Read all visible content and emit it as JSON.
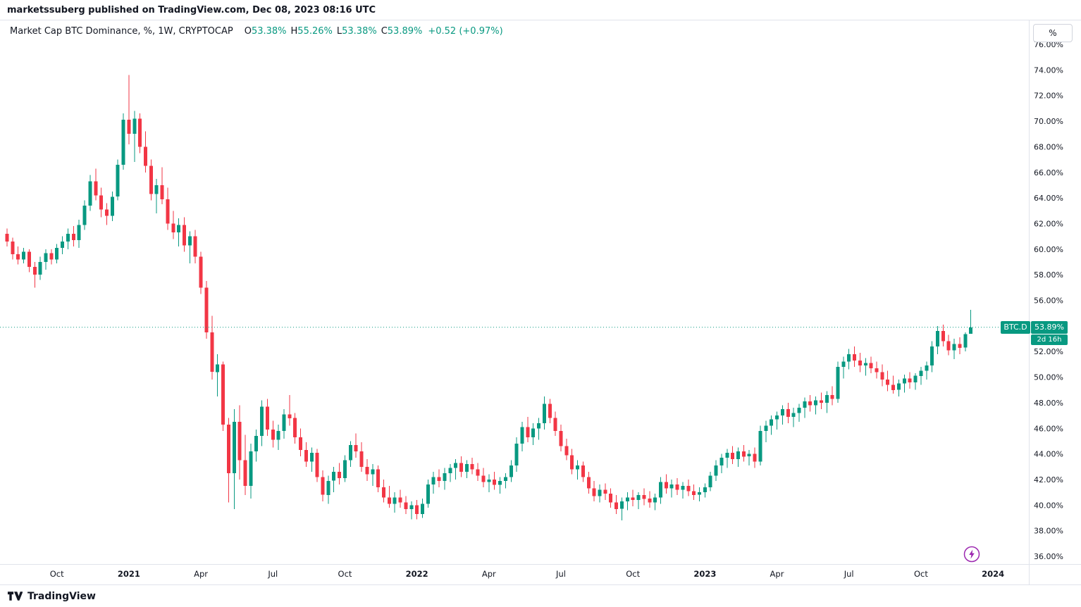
{
  "header": {
    "published_line": "marketssuberg published on TradingView.com, Dec 08, 2023 08:16 UTC"
  },
  "legend": {
    "title": "Market Cap BTC Dominance, %, 1W, CRYPTOCAP",
    "ohlc": [
      {
        "label": "O",
        "value": "53.38%"
      },
      {
        "label": "H",
        "value": "55.26%"
      },
      {
        "label": "L",
        "value": "53.38%"
      },
      {
        "label": "C",
        "value": "53.89%"
      }
    ],
    "change": "+0.52 (+0.97%)"
  },
  "price_scale": {
    "unit_button_label": "%",
    "min": 36,
    "max": 76,
    "step": 2,
    "tick_suffix": "%"
  },
  "price_label": {
    "symbol": "BTC.D",
    "value": "53.89%",
    "countdown": "2d 16h"
  },
  "time_axis": [
    {
      "label": "Oct",
      "index": 9
    },
    {
      "label": "2021",
      "index": 22,
      "bold": true
    },
    {
      "label": "Apr",
      "index": 35
    },
    {
      "label": "Jul",
      "index": 48
    },
    {
      "label": "Oct",
      "index": 61
    },
    {
      "label": "2022",
      "index": 74,
      "bold": true
    },
    {
      "label": "Apr",
      "index": 87
    },
    {
      "label": "Jul",
      "index": 100
    },
    {
      "label": "Oct",
      "index": 113
    },
    {
      "label": "2023",
      "index": 126,
      "bold": true
    },
    {
      "label": "Apr",
      "index": 139
    },
    {
      "label": "Jul",
      "index": 152
    },
    {
      "label": "Oct",
      "index": 165
    },
    {
      "label": "2024",
      "index": 178,
      "bold": true
    }
  ],
  "footer": {
    "brand": "TradingView"
  },
  "colors": {
    "up": "#089981",
    "down": "#f23645",
    "axis_text": "#131722",
    "separator": "#e0e3eb",
    "last_price_line": "#089981",
    "badge_bg": "#089981",
    "bolt": "#9c27b0"
  },
  "chart_data": {
    "type": "candlestick",
    "title": "Market Cap BTC Dominance",
    "symbol": "CRYPTOCAP:BTC.D",
    "interval": "1W",
    "unit": "%",
    "ylim": [
      36,
      76
    ],
    "y_tick_step": 2,
    "x_start_week": "2020-08-03",
    "x_interval": "1 week",
    "last_close": 53.89,
    "last_change": "+0.52 (+0.97%)",
    "ohlc": [
      [
        61.2,
        61.6,
        60.2,
        60.6
      ],
      [
        60.6,
        60.9,
        59.2,
        59.6
      ],
      [
        59.6,
        60.2,
        58.8,
        59.2
      ],
      [
        59.2,
        60.1,
        58.9,
        59.8
      ],
      [
        59.8,
        60.0,
        58.2,
        58.6
      ],
      [
        58.6,
        59.0,
        57.0,
        58.0
      ],
      [
        58.0,
        59.4,
        57.6,
        59.0
      ],
      [
        59.0,
        60.0,
        58.4,
        59.7
      ],
      [
        59.7,
        60.0,
        58.8,
        59.2
      ],
      [
        59.2,
        60.4,
        58.9,
        60.1
      ],
      [
        60.1,
        61.0,
        59.6,
        60.6
      ],
      [
        60.6,
        61.6,
        60.0,
        61.2
      ],
      [
        61.2,
        61.8,
        60.2,
        60.7
      ],
      [
        60.7,
        62.3,
        60.1,
        61.9
      ],
      [
        61.9,
        63.8,
        61.5,
        63.4
      ],
      [
        63.4,
        65.8,
        63.0,
        65.3
      ],
      [
        65.3,
        66.3,
        63.8,
        64.2
      ],
      [
        64.2,
        64.8,
        62.5,
        63.1
      ],
      [
        63.1,
        63.6,
        61.9,
        62.6
      ],
      [
        62.6,
        64.5,
        62.2,
        64.1
      ],
      [
        64.1,
        67.0,
        63.8,
        66.6
      ],
      [
        66.6,
        70.6,
        66.2,
        70.1
      ],
      [
        70.1,
        73.6,
        68.2,
        69.0
      ],
      [
        69.0,
        70.8,
        66.8,
        70.2
      ],
      [
        70.2,
        70.6,
        67.5,
        68.0
      ],
      [
        68.0,
        69.2,
        66.0,
        66.5
      ],
      [
        66.5,
        67.0,
        63.8,
        64.3
      ],
      [
        64.3,
        65.5,
        62.8,
        65.0
      ],
      [
        65.0,
        66.4,
        63.5,
        63.9
      ],
      [
        63.9,
        64.8,
        61.5,
        62.0
      ],
      [
        62.0,
        63.0,
        60.8,
        61.3
      ],
      [
        61.3,
        62.4,
        60.2,
        61.9
      ],
      [
        61.9,
        62.5,
        59.8,
        60.3
      ],
      [
        60.3,
        61.4,
        58.9,
        61.0
      ],
      [
        61.0,
        61.5,
        58.9,
        59.4
      ],
      [
        59.4,
        59.8,
        56.5,
        57.0
      ],
      [
        57.0,
        57.5,
        53.0,
        53.5
      ],
      [
        53.5,
        54.8,
        49.8,
        50.4
      ],
      [
        50.4,
        51.8,
        48.5,
        51.0
      ],
      [
        51.0,
        51.2,
        45.8,
        46.3
      ],
      [
        46.3,
        46.8,
        40.2,
        42.5
      ],
      [
        42.5,
        47.5,
        39.7,
        46.5
      ],
      [
        46.5,
        47.8,
        42.0,
        43.5
      ],
      [
        43.5,
        45.5,
        40.8,
        41.5
      ],
      [
        41.5,
        44.8,
        40.5,
        44.2
      ],
      [
        44.2,
        45.9,
        43.4,
        45.4
      ],
      [
        45.4,
        48.2,
        44.6,
        47.7
      ],
      [
        47.7,
        48.3,
        45.4,
        45.9
      ],
      [
        45.9,
        46.6,
        44.5,
        45.1
      ],
      [
        45.1,
        46.3,
        44.3,
        45.8
      ],
      [
        45.8,
        47.5,
        45.2,
        47.1
      ],
      [
        47.1,
        48.6,
        46.2,
        46.8
      ],
      [
        46.8,
        47.2,
        44.8,
        45.3
      ],
      [
        45.3,
        46.0,
        43.8,
        44.3
      ],
      [
        44.3,
        44.9,
        43.0,
        43.4
      ],
      [
        43.4,
        44.5,
        42.6,
        44.1
      ],
      [
        44.1,
        44.4,
        41.8,
        42.2
      ],
      [
        42.2,
        42.7,
        40.3,
        40.8
      ],
      [
        40.8,
        42.3,
        40.1,
        41.9
      ],
      [
        41.9,
        43.0,
        41.0,
        42.6
      ],
      [
        42.6,
        43.3,
        41.6,
        42.1
      ],
      [
        42.1,
        43.9,
        41.8,
        43.5
      ],
      [
        43.5,
        45.0,
        43.0,
        44.7
      ],
      [
        44.7,
        45.6,
        43.7,
        44.2
      ],
      [
        44.2,
        44.9,
        42.6,
        43.0
      ],
      [
        43.0,
        43.6,
        41.9,
        42.4
      ],
      [
        42.4,
        43.2,
        41.5,
        42.8
      ],
      [
        42.8,
        43.1,
        41.0,
        41.4
      ],
      [
        41.4,
        42.0,
        40.2,
        40.6
      ],
      [
        40.6,
        41.5,
        39.8,
        40.1
      ],
      [
        40.1,
        41.0,
        39.4,
        40.6
      ],
      [
        40.6,
        41.2,
        39.8,
        40.2
      ],
      [
        40.2,
        40.7,
        39.3,
        39.7
      ],
      [
        39.7,
        40.3,
        38.9,
        40.0
      ],
      [
        40.0,
        40.4,
        38.9,
        39.3
      ],
      [
        39.3,
        40.5,
        39.0,
        40.1
      ],
      [
        40.1,
        42.0,
        39.8,
        41.6
      ],
      [
        41.6,
        42.6,
        40.9,
        42.2
      ],
      [
        42.2,
        42.8,
        41.4,
        41.9
      ],
      [
        41.9,
        42.9,
        41.2,
        42.5
      ],
      [
        42.5,
        43.2,
        41.8,
        42.9
      ],
      [
        42.9,
        43.6,
        42.0,
        43.3
      ],
      [
        43.3,
        43.8,
        42.2,
        42.6
      ],
      [
        42.6,
        43.5,
        42.1,
        43.2
      ],
      [
        43.2,
        43.7,
        42.4,
        42.8
      ],
      [
        42.8,
        43.3,
        41.9,
        42.3
      ],
      [
        42.3,
        42.9,
        41.4,
        41.8
      ],
      [
        41.8,
        42.4,
        41.0,
        42.0
      ],
      [
        42.0,
        42.6,
        41.2,
        41.6
      ],
      [
        41.6,
        42.2,
        40.9,
        41.9
      ],
      [
        41.9,
        42.5,
        41.3,
        42.2
      ],
      [
        42.2,
        43.5,
        41.8,
        43.1
      ],
      [
        43.1,
        45.3,
        42.6,
        44.8
      ],
      [
        44.8,
        46.5,
        44.2,
        46.1
      ],
      [
        46.1,
        46.9,
        44.9,
        45.3
      ],
      [
        45.3,
        46.4,
        44.7,
        46.0
      ],
      [
        46.0,
        46.8,
        45.1,
        46.4
      ],
      [
        46.4,
        48.5,
        45.9,
        47.9
      ],
      [
        47.9,
        48.3,
        46.4,
        46.8
      ],
      [
        46.8,
        47.3,
        45.4,
        45.8
      ],
      [
        45.8,
        46.3,
        44.2,
        44.6
      ],
      [
        44.6,
        45.2,
        43.5,
        43.9
      ],
      [
        43.9,
        44.4,
        42.4,
        42.8
      ],
      [
        42.8,
        43.5,
        42.0,
        43.1
      ],
      [
        43.1,
        43.4,
        41.8,
        42.2
      ],
      [
        42.2,
        42.6,
        40.9,
        41.3
      ],
      [
        41.3,
        41.9,
        40.3,
        40.7
      ],
      [
        40.7,
        41.6,
        40.2,
        41.2
      ],
      [
        41.2,
        41.7,
        40.4,
        40.9
      ],
      [
        40.9,
        41.3,
        39.8,
        40.2
      ],
      [
        40.2,
        40.8,
        39.3,
        39.7
      ],
      [
        39.7,
        40.6,
        38.8,
        40.3
      ],
      [
        40.3,
        41.0,
        39.6,
        40.6
      ],
      [
        40.6,
        41.2,
        39.9,
        40.4
      ],
      [
        40.4,
        41.0,
        39.7,
        40.8
      ],
      [
        40.8,
        41.3,
        40.0,
        40.5
      ],
      [
        40.5,
        41.1,
        39.8,
        40.2
      ],
      [
        40.2,
        40.9,
        39.6,
        40.6
      ],
      [
        40.6,
        42.2,
        40.1,
        41.8
      ],
      [
        41.8,
        42.4,
        40.9,
        41.3
      ],
      [
        41.3,
        42.0,
        40.6,
        41.6
      ],
      [
        41.6,
        42.1,
        40.8,
        41.2
      ],
      [
        41.2,
        41.8,
        40.5,
        41.5
      ],
      [
        41.5,
        42.0,
        40.7,
        41.1
      ],
      [
        41.1,
        41.6,
        40.4,
        40.8
      ],
      [
        40.8,
        41.4,
        40.3,
        41.0
      ],
      [
        41.0,
        41.7,
        40.6,
        41.4
      ],
      [
        41.4,
        42.6,
        41.1,
        42.3
      ],
      [
        42.3,
        43.5,
        41.9,
        43.1
      ],
      [
        43.1,
        44.0,
        42.5,
        43.7
      ],
      [
        43.7,
        44.4,
        42.9,
        44.1
      ],
      [
        44.1,
        44.6,
        43.2,
        43.6
      ],
      [
        43.6,
        44.5,
        43.0,
        44.2
      ],
      [
        44.2,
        44.7,
        43.4,
        43.8
      ],
      [
        43.8,
        44.3,
        43.1,
        44.0
      ],
      [
        44.0,
        44.5,
        42.9,
        43.4
      ],
      [
        43.4,
        46.2,
        43.1,
        45.8
      ],
      [
        45.8,
        46.6,
        44.9,
        46.2
      ],
      [
        46.2,
        47.0,
        45.5,
        46.7
      ],
      [
        46.7,
        47.3,
        45.9,
        47.0
      ],
      [
        47.0,
        47.8,
        46.3,
        47.5
      ],
      [
        47.5,
        48.0,
        46.4,
        46.9
      ],
      [
        46.9,
        47.6,
        46.1,
        47.2
      ],
      [
        47.2,
        47.9,
        46.5,
        47.6
      ],
      [
        47.6,
        48.4,
        46.8,
        48.1
      ],
      [
        48.1,
        48.6,
        47.3,
        47.8
      ],
      [
        47.8,
        48.5,
        47.1,
        48.2
      ],
      [
        48.2,
        48.8,
        47.5,
        48.0
      ],
      [
        48.0,
        48.9,
        47.2,
        48.6
      ],
      [
        48.6,
        49.3,
        47.8,
        48.3
      ],
      [
        48.3,
        51.2,
        48.0,
        50.8
      ],
      [
        50.8,
        51.6,
        49.9,
        51.2
      ],
      [
        51.2,
        52.2,
        50.6,
        51.8
      ],
      [
        51.8,
        52.4,
        50.8,
        51.3
      ],
      [
        51.3,
        51.9,
        50.4,
        50.9
      ],
      [
        50.9,
        51.5,
        50.1,
        51.1
      ],
      [
        51.1,
        51.6,
        50.3,
        50.7
      ],
      [
        50.7,
        51.2,
        49.9,
        50.4
      ],
      [
        50.4,
        51.0,
        49.3,
        49.8
      ],
      [
        49.8,
        50.5,
        48.9,
        49.4
      ],
      [
        49.4,
        50.1,
        48.7,
        49.0
      ],
      [
        49.0,
        49.8,
        48.5,
        49.5
      ],
      [
        49.5,
        50.2,
        48.8,
        49.9
      ],
      [
        49.9,
        50.4,
        49.1,
        49.6
      ],
      [
        49.6,
        50.3,
        49.0,
        50.1
      ],
      [
        50.1,
        50.8,
        49.4,
        50.5
      ],
      [
        50.5,
        51.2,
        49.8,
        50.9
      ],
      [
        50.9,
        52.8,
        50.4,
        52.4
      ],
      [
        52.4,
        54.0,
        51.8,
        53.6
      ],
      [
        53.6,
        54.1,
        52.4,
        52.8
      ],
      [
        52.8,
        53.3,
        51.7,
        52.1
      ],
      [
        52.1,
        53.0,
        51.4,
        52.6
      ],
      [
        52.6,
        53.1,
        51.8,
        52.3
      ],
      [
        52.3,
        53.5,
        52.0,
        53.37
      ],
      [
        53.38,
        55.26,
        53.38,
        53.89
      ]
    ]
  }
}
